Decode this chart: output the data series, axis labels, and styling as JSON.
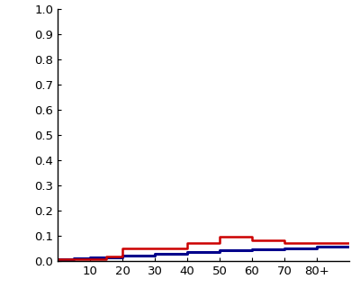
{
  "xlim": [
    0,
    90
  ],
  "ylim": [
    0,
    1.0
  ],
  "yticks": [
    0.0,
    0.1,
    0.2,
    0.3,
    0.4,
    0.5,
    0.6,
    0.7,
    0.8,
    0.9,
    1.0
  ],
  "xtick_positions": [
    10,
    20,
    30,
    40,
    50,
    60,
    70,
    80
  ],
  "xtick_labels": [
    "10",
    "20",
    "30",
    "40",
    "50",
    "60",
    "70",
    "80+"
  ],
  "red_line": {
    "x": [
      0,
      15,
      15,
      20,
      20,
      30,
      30,
      40,
      40,
      50,
      50,
      60,
      60,
      70,
      70,
      90
    ],
    "y": [
      0.01,
      0.01,
      0.02,
      0.02,
      0.052,
      0.052,
      0.052,
      0.052,
      0.072,
      0.072,
      0.098,
      0.098,
      0.085,
      0.085,
      0.072,
      0.072
    ],
    "color": "#cc0000",
    "linewidth": 1.8
  },
  "blue_line": {
    "x": [
      0,
      5,
      10,
      20,
      30,
      40,
      50,
      60,
      70,
      80,
      90
    ],
    "y": [
      0.01,
      0.012,
      0.015,
      0.022,
      0.03,
      0.037,
      0.043,
      0.048,
      0.053,
      0.057,
      0.06
    ],
    "color": "#00008B",
    "linewidth": 2.2
  },
  "background_color": "#ffffff",
  "figsize": [
    4.0,
    3.3
  ],
  "dpi": 100
}
